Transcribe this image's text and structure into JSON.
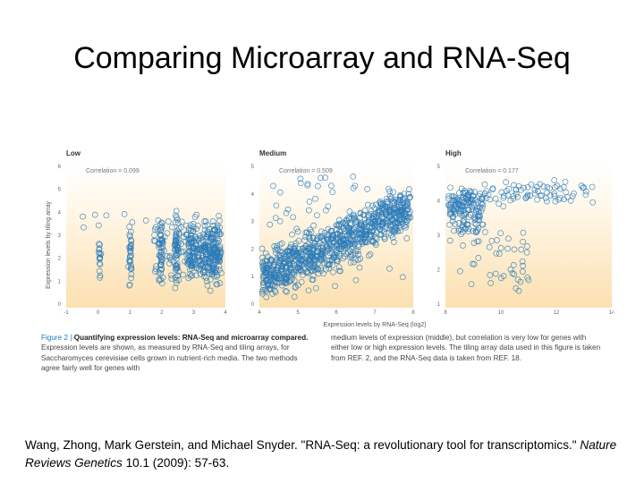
{
  "slide": {
    "title": "Comparing Microarray and RNA-Seq"
  },
  "figure": {
    "y_axis_label": "Expression levels by tiling array",
    "x_axis_label": "Expression levels by RNA-Seq (log2)",
    "panels": [
      {
        "label": "Low",
        "correlation": "Correlation = 0.099",
        "x_ticks": [
          "-1",
          "0",
          "1",
          "2",
          "3",
          "4"
        ],
        "y_ticks": [
          "6",
          "5",
          "4",
          "3",
          "2",
          "1",
          "0"
        ]
      },
      {
        "label": "Medium",
        "correlation": "Correlation = 0.509",
        "x_ticks": [
          "4",
          "5",
          "6",
          "7",
          "8"
        ],
        "y_ticks": [
          "5",
          "4",
          "3",
          "2",
          "1",
          "0"
        ]
      },
      {
        "label": "High",
        "correlation": "Correlation = 0.177",
        "x_ticks": [
          "8",
          "10",
          "12",
          "14"
        ],
        "y_ticks": [
          "5",
          "4",
          "3",
          "2",
          "1"
        ]
      }
    ],
    "caption": {
      "figure_number": "Figure 2 |",
      "heading": "Quantifying expression levels: RNA-Seq and microarray compared.",
      "left_text": "Expression levels are shown, as measured by RNA-Seq and tiling arrays, for Saccharomyces cerevisiae cells grown in nutrient-rich media. The two methods agree fairly well for genes with",
      "right_text": "medium levels of expression (middle), but correlation is very low for genes with either low or high expression levels. The tiling array data used in this figure is taken from REF. 2, and the RNA-Seq data is taken from REF. 18."
    }
  },
  "citation": {
    "authors": "Wang, Zhong, Mark Gerstein, and Michael Snyder. ",
    "article": "\"RNA-Seq: a revolutionary tool for transcriptomics.\" ",
    "journal": "Nature Reviews Genetics",
    "details": " 10.1 (2009): 57-63."
  },
  "colors": {
    "point": "#2b7bba",
    "panel_bg_top": "#ffffff",
    "panel_bg_bottom": "#fbe3b8"
  }
}
